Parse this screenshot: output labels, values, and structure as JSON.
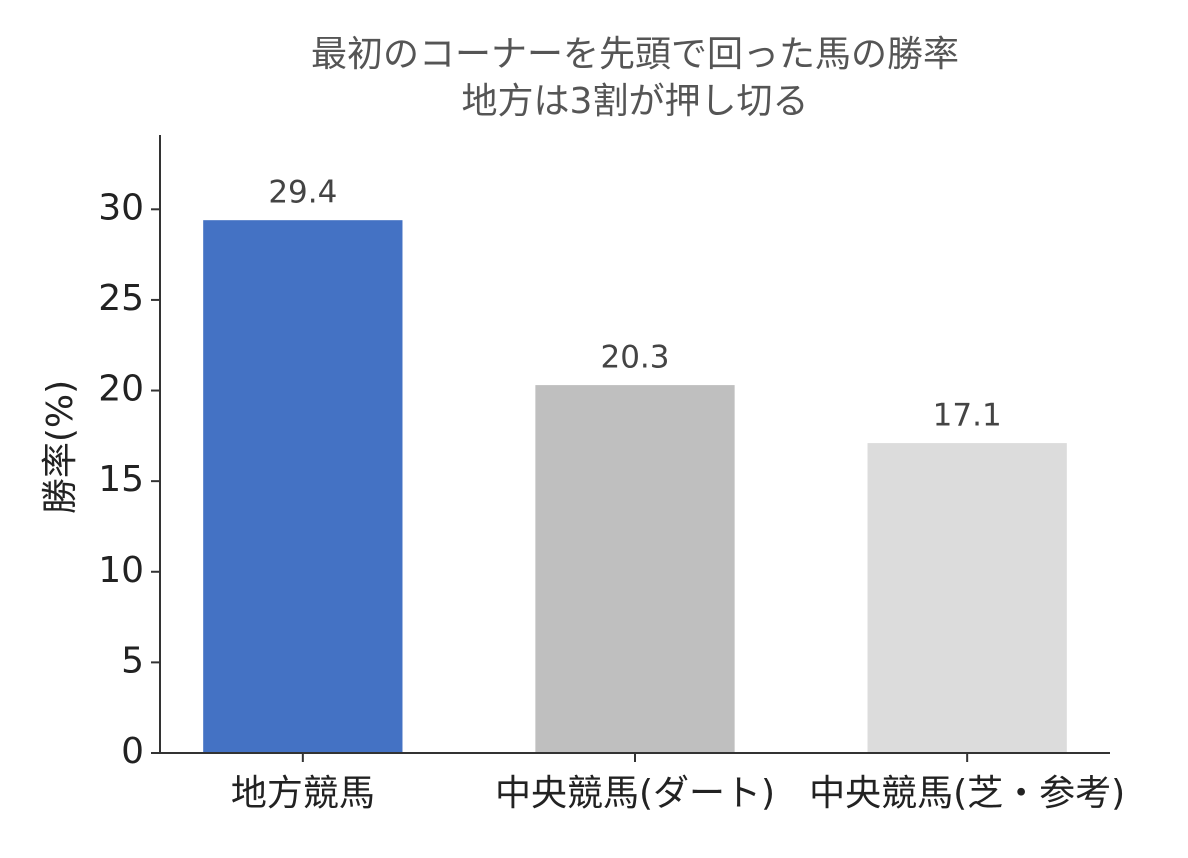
{
  "chart_data": {
    "type": "bar",
    "title": "最初のコーナーを先頭で回った馬の勝率",
    "subtitle": "地方は3割が押し切る",
    "ylabel": "勝率(%)",
    "categories": [
      "地方競馬",
      "中央競馬(ダート)",
      "中央競馬(芝・参考)"
    ],
    "values": [
      29.4,
      20.3,
      17.1
    ],
    "colors": [
      "#4472c4",
      "#bfbfbf",
      "#dcdcdc"
    ],
    "ylim": [
      0,
      34.1
    ],
    "yticks": [
      0,
      5,
      10,
      15,
      20,
      25,
      30
    ]
  }
}
